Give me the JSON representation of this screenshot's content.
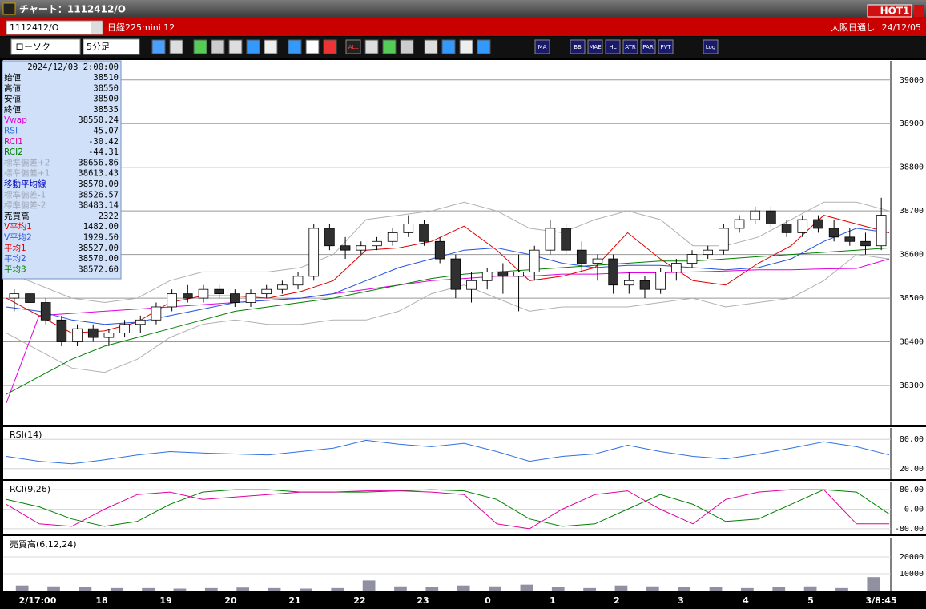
{
  "window": {
    "title": "チャート：1112412/O",
    "badge": "HOT1"
  },
  "header": {
    "symbol": "1112412/O",
    "name": "日経225mini 12",
    "session": "大阪日通し",
    "date": "24/12/05"
  },
  "toolbar": {
    "chart_type": "ローソク",
    "interval": "5分足",
    "buttons": [
      "ALL",
      "MA",
      "BB",
      "MAE",
      "HL",
      "ATR",
      "PAR",
      "PVT",
      "Log"
    ]
  },
  "info": {
    "datetime": "2024/12/03  2:00:00",
    "rows": [
      {
        "label": "始値",
        "value": "38510",
        "color": "#000000"
      },
      {
        "label": "高値",
        "value": "38550",
        "color": "#000000"
      },
      {
        "label": "安値",
        "value": "38500",
        "color": "#000000"
      },
      {
        "label": "終値",
        "value": "38535",
        "color": "#000000"
      },
      {
        "label": "Vwap",
        "value": "38550.24",
        "color": "#e000e0"
      },
      {
        "label": "RSI",
        "value": "45.07",
        "color": "#3070e0"
      },
      {
        "label": "RCI1",
        "value": "-30.42",
        "color": "#e000a0"
      },
      {
        "label": "RCI2",
        "value": "-44.31",
        "color": "#008000"
      },
      {
        "label": "標準偏差+2",
        "value": "38656.86",
        "color": "#a0a8b8"
      },
      {
        "label": "標準偏差+1",
        "value": "38613.43",
        "color": "#a0a8b8"
      },
      {
        "label": "移動平均線",
        "value": "38570.00",
        "color": "#0000c0"
      },
      {
        "label": "標準偏差-1",
        "value": "38526.57",
        "color": "#a0a8b8"
      },
      {
        "label": "標準偏差-2",
        "value": "38483.14",
        "color": "#a0a8b8"
      },
      {
        "label": "売買高",
        "value": "2322",
        "color": "#000000"
      },
      {
        "label": "V平均1",
        "value": "1482.00",
        "color": "#e00000"
      },
      {
        "label": "V平均2",
        "value": "1929.50",
        "color": "#3050e0"
      },
      {
        "label": "平均1",
        "value": "38527.00",
        "color": "#e00000"
      },
      {
        "label": "平均2",
        "value": "38570.00",
        "color": "#3050e0"
      },
      {
        "label": "平均3",
        "value": "38572.60",
        "color": "#008000"
      }
    ]
  },
  "x_labels": [
    "2/17:00",
    "18",
    "19",
    "20",
    "21",
    "22",
    "23",
    "0",
    "1",
    "2",
    "3",
    "4",
    "5",
    "3/8:45"
  ],
  "chart_data": [
    {
      "type": "candlestick",
      "ylim": [
        38210,
        39040
      ],
      "yticks": [
        38300,
        38400,
        38500,
        38600,
        38700,
        38800,
        38900,
        39000
      ],
      "grid": true,
      "up_color": "#ffffff",
      "down_color": "#303030",
      "open": [
        38500,
        38510,
        38490,
        38450,
        38400,
        38430,
        38410,
        38420,
        38440,
        38450,
        38480,
        38510,
        38500,
        38520,
        38510,
        38490,
        38510,
        38520,
        38530,
        38550,
        38660,
        38620,
        38610,
        38620,
        38630,
        38650,
        38670,
        38630,
        38590,
        38520,
        38540,
        38560,
        38550,
        38560,
        38610,
        38660,
        38610,
        38580,
        38590,
        38530,
        38540,
        38520,
        38560,
        38580,
        38600,
        38610,
        38660,
        38680,
        38700,
        38670,
        38650,
        38680,
        38660,
        38640,
        38630,
        38620
      ],
      "high": [
        38520,
        38530,
        38500,
        38460,
        38440,
        38440,
        38430,
        38450,
        38460,
        38490,
        38520,
        38530,
        38530,
        38530,
        38520,
        38520,
        38530,
        38540,
        38560,
        38670,
        38670,
        38640,
        38630,
        38640,
        38660,
        38690,
        38680,
        38640,
        38600,
        38560,
        38570,
        38580,
        38600,
        38620,
        38680,
        38670,
        38630,
        38600,
        38600,
        38560,
        38550,
        38570,
        38590,
        38610,
        38620,
        38670,
        38690,
        38710,
        38710,
        38680,
        38690,
        38690,
        38680,
        38660,
        38650,
        38730
      ],
      "low": [
        38470,
        38480,
        38440,
        38390,
        38390,
        38400,
        38390,
        38410,
        38420,
        38440,
        38470,
        38490,
        38490,
        38500,
        38480,
        38480,
        38500,
        38510,
        38520,
        38540,
        38610,
        38590,
        38600,
        38610,
        38620,
        38640,
        38620,
        38580,
        38500,
        38490,
        38520,
        38510,
        38470,
        38540,
        38600,
        38600,
        38560,
        38540,
        38510,
        38510,
        38500,
        38510,
        38540,
        38570,
        38590,
        38600,
        38650,
        38670,
        38660,
        38640,
        38640,
        38650,
        38630,
        38620,
        38600,
        38610
      ],
      "close": [
        38510,
        38490,
        38450,
        38400,
        38430,
        38410,
        38420,
        38440,
        38450,
        38480,
        38510,
        38500,
        38520,
        38510,
        38490,
        38510,
        38520,
        38530,
        38550,
        38660,
        38620,
        38610,
        38620,
        38630,
        38650,
        38670,
        38630,
        38590,
        38520,
        38540,
        38560,
        38550,
        38560,
        38610,
        38660,
        38610,
        38580,
        38590,
        38530,
        38540,
        38520,
        38560,
        38580,
        38600,
        38610,
        38660,
        38680,
        38700,
        38670,
        38650,
        38680,
        38660,
        38640,
        38630,
        38620,
        38690
      ],
      "series": [
        {
          "color": "#b0b0b0",
          "values": [
            38560,
            38530,
            38500,
            38490,
            38500,
            38540,
            38560,
            38560,
            38560,
            38570,
            38600,
            38680,
            38690,
            38700,
            38720,
            38700,
            38660,
            38650,
            38680,
            38700,
            38680,
            38620,
            38620,
            38640,
            38680,
            38720,
            38720,
            38700
          ]
        },
        {
          "color": "#b0b0b0",
          "values": [
            38420,
            38380,
            38340,
            38330,
            38360,
            38410,
            38440,
            38450,
            38440,
            38440,
            38450,
            38450,
            38470,
            38510,
            38530,
            38500,
            38470,
            38480,
            38480,
            38480,
            38490,
            38500,
            38480,
            38490,
            38500,
            38540,
            38600,
            38590
          ]
        },
        {
          "color": "#e000e0",
          "values": [
            38260,
            38460,
            38465,
            38470,
            38475,
            38480,
            38485,
            38490,
            38495,
            38500,
            38510,
            38520,
            38530,
            38540,
            38545,
            38550,
            38550,
            38555,
            38555,
            38558,
            38558,
            38560,
            38562,
            38565,
            38565,
            38567,
            38568,
            38590
          ]
        },
        {
          "color": "#008000",
          "values": [
            38280,
            38320,
            38360,
            38390,
            38410,
            38430,
            38450,
            38470,
            38480,
            38490,
            38500,
            38515,
            38530,
            38545,
            38555,
            38560,
            38565,
            38570,
            38575,
            38580,
            38585,
            38585,
            38590,
            38595,
            38600,
            38605,
            38610,
            38615
          ]
        },
        {
          "color": "#2050e0",
          "values": [
            38480,
            38470,
            38450,
            38440,
            38445,
            38460,
            38475,
            38490,
            38495,
            38500,
            38510,
            38540,
            38570,
            38590,
            38610,
            38615,
            38600,
            38580,
            38570,
            38575,
            38575,
            38570,
            38565,
            38570,
            38590,
            38630,
            38660,
            38650
          ]
        },
        {
          "color": "#e00000",
          "values": [
            38500,
            38460,
            38420,
            38425,
            38445,
            38490,
            38505,
            38505,
            38500,
            38515,
            38540,
            38610,
            38615,
            38630,
            38665,
            38610,
            38540,
            38550,
            38570,
            38650,
            38590,
            38540,
            38530,
            38580,
            38620,
            38690,
            38670,
            38650
          ]
        }
      ]
    },
    {
      "type": "line",
      "title": "RSI(14)",
      "ylim": [
        0,
        100
      ],
      "yticks": [
        {
          "value": 20,
          "label": "20.00"
        },
        {
          "value": 80,
          "label": "80.00"
        }
      ],
      "series": [
        {
          "color": "#3070e0",
          "values": [
            45,
            35,
            30,
            38,
            48,
            55,
            52,
            50,
            48,
            55,
            62,
            78,
            70,
            65,
            72,
            55,
            35,
            45,
            50,
            68,
            55,
            45,
            40,
            50,
            62,
            75,
            65,
            48
          ]
        }
      ]
    },
    {
      "type": "line",
      "title": "RCI(9,26)",
      "ylim": [
        -100,
        100
      ],
      "yticks": [
        {
          "value": -80,
          "label": "-80.00"
        },
        {
          "value": 0,
          "label": "0.00"
        },
        {
          "value": 80,
          "label": "80.00"
        }
      ],
      "series": [
        {
          "color": "#008000",
          "values": [
            40,
            10,
            -40,
            -70,
            -50,
            20,
            70,
            80,
            80,
            70,
            70,
            70,
            75,
            80,
            75,
            40,
            -40,
            -70,
            -60,
            0,
            60,
            20,
            -50,
            -40,
            20,
            80,
            70,
            -20
          ]
        },
        {
          "color": "#e000a0",
          "values": [
            20,
            -60,
            -70,
            0,
            60,
            70,
            40,
            50,
            60,
            70,
            70,
            75,
            75,
            70,
            60,
            -60,
            -80,
            0,
            60,
            75,
            0,
            -60,
            40,
            70,
            80,
            80,
            -60,
            -60
          ]
        }
      ]
    },
    {
      "type": "bar",
      "title": "売買高(6,12,24)",
      "ylim": [
        0,
        30000
      ],
      "yticks": [
        10000,
        20000
      ],
      "color": "#9090a0",
      "values": [
        3000,
        2500,
        2000,
        1500,
        1500,
        1200,
        1500,
        1800,
        1500,
        1200,
        1500,
        6000,
        2500,
        2000,
        3000,
        2500,
        3500,
        2000,
        1500,
        3000,
        2500,
        2000,
        2000,
        1500,
        2000,
        2500,
        1500,
        8000
      ]
    }
  ]
}
